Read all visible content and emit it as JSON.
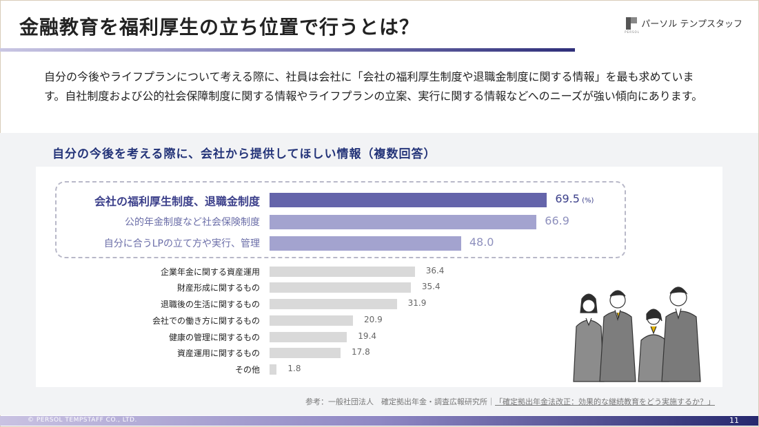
{
  "slide": {
    "title": "金融教育を福利厚生の立ち位置で行うとは？",
    "logo_text": "パーソル テンプスタッフ",
    "logo_sub": "PERSOL",
    "intro": "自分の今後やライフプランについて考える際に、社員は会社に「会社の福利厚生制度や退職金制度に関する情報」を最も求めています。自社制度および公的社会保障制度に関する情報やライフプランの立案、実行に関する情報などへのニーズが強い傾向にあります。",
    "chart_heading": "自分の今後を考える際に、会社から提供してほしい情報（複数回答）",
    "reference_prefix": "参考：一般社団法人　確定拠出年金・調査広報研究所｜",
    "reference_link": "「確定拠出年金法改正：効果的な継続教育をどう実施するか？」",
    "copyright": "© PERSOL TEMPSTAFF CO., LTD.",
    "page_number": "11"
  },
  "colors": {
    "bar_top": "#6464aa",
    "bar_highlight": "#a3a3cf",
    "bar_other": "#d9d9d9",
    "label_top": "#3b3f8a",
    "label_highlight": "#6b6ea8",
    "label_other": "#222222",
    "value_top": "#3b3f8a",
    "value_highlight": "#8e90bd",
    "value_other": "#666666"
  },
  "chart_data": {
    "type": "bar",
    "orientation": "horizontal",
    "unit_label": "(%)",
    "categories": [
      "会社の福利厚生制度、退職金制度",
      "公的年金制度など社会保険制度",
      "自分に合うLPの立て方や実行、管理",
      "企業年金に関する資産運用",
      "財産形成に関するもの",
      "退職後の生活に関するもの",
      "会社での働き方に関するもの",
      "健康の管理に関するもの",
      "資産運用に関するもの",
      "その他"
    ],
    "values": [
      69.5,
      66.9,
      48.0,
      36.4,
      35.4,
      31.9,
      20.9,
      19.4,
      17.8,
      1.8
    ],
    "value_labels": [
      "69.5",
      "66.9",
      "48.0",
      "36.4",
      "35.4",
      "31.9",
      "20.9",
      "19.4",
      "17.8",
      "1.8"
    ],
    "highlight_count": 3,
    "xlim": [
      0,
      71
    ]
  }
}
